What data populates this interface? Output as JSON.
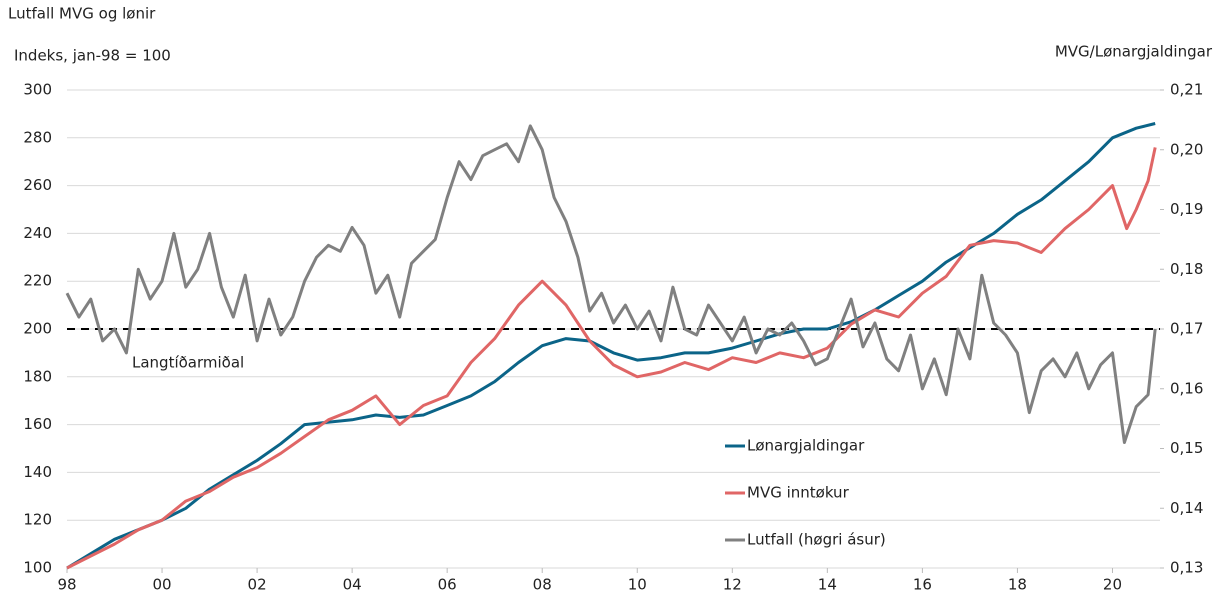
{
  "chart_data": {
    "type": "line",
    "title": "Lutfall MVG og lønir",
    "y_label": "Indeks, jan-98 = 100",
    "y2_label": "MVG/Lønargjaldingar",
    "xlim": [
      1998,
      2021
    ],
    "xticks": [
      {
        "value": 1998,
        "label": "98"
      },
      {
        "value": 2000,
        "label": "00"
      },
      {
        "value": 2002,
        "label": "02"
      },
      {
        "value": 2004,
        "label": "04"
      },
      {
        "value": 2006,
        "label": "06"
      },
      {
        "value": 2008,
        "label": "08"
      },
      {
        "value": 2010,
        "label": "10"
      },
      {
        "value": 2012,
        "label": "12"
      },
      {
        "value": 2014,
        "label": "14"
      },
      {
        "value": 2016,
        "label": "16"
      },
      {
        "value": 2018,
        "label": "18"
      },
      {
        "value": 2020,
        "label": "20"
      }
    ],
    "ylim": [
      100,
      300
    ],
    "yticks": [
      100,
      120,
      140,
      160,
      180,
      200,
      220,
      240,
      260,
      280,
      300
    ],
    "y2lim": [
      0.13,
      0.21
    ],
    "y2ticks": [
      {
        "value": 0.13,
        "label": "0,13"
      },
      {
        "value": 0.14,
        "label": "0,14"
      },
      {
        "value": 0.15,
        "label": "0,15"
      },
      {
        "value": 0.16,
        "label": "0,16"
      },
      {
        "value": 0.17,
        "label": "0,17"
      },
      {
        "value": 0.18,
        "label": "0,18"
      },
      {
        "value": 0.19,
        "label": "0,19"
      },
      {
        "value": 0.2,
        "label": "0,20"
      },
      {
        "value": 0.21,
        "label": "0,21"
      }
    ],
    "grid": true,
    "reference_line": {
      "value": 0.17,
      "axis": "y2",
      "label": "Langtíðarmiðal"
    },
    "series": [
      {
        "name": "Lønargjaldingar",
        "color": "#0b6488",
        "x": [
          1998,
          1999,
          2000,
          2000.5,
          2001,
          2002,
          2002.5,
          2003,
          2004,
          2004.5,
          2005,
          2005.5,
          2006,
          2006.5,
          2007,
          2007.5,
          2008,
          2008.5,
          2009,
          2009.5,
          2010,
          2010.5,
          2011,
          2011.5,
          2012,
          2012.5,
          2013,
          2013.5,
          2014,
          2014.5,
          2015,
          2015.5,
          2016,
          2016.5,
          2017,
          2017.5,
          2018,
          2018.5,
          2019,
          2019.5,
          2020,
          2020.5,
          2020.9
        ],
        "values": [
          100,
          112,
          120,
          125,
          133,
          145,
          152,
          160,
          162,
          164,
          163,
          164,
          168,
          172,
          178,
          186,
          193,
          196,
          195,
          190,
          187,
          188,
          190,
          190,
          192,
          195,
          198,
          200,
          200,
          203,
          208,
          214,
          220,
          228,
          234,
          240,
          248,
          254,
          262,
          270,
          280,
          284,
          286
        ]
      },
      {
        "name": "MVG inntøkur",
        "color": "#e06666",
        "x": [
          1998,
          1998.5,
          1999,
          1999.5,
          2000,
          2000.5,
          2001,
          2001.5,
          2002,
          2002.5,
          2003,
          2003.5,
          2004,
          2004.5,
          2005,
          2005.5,
          2006,
          2006.5,
          2007,
          2007.5,
          2008,
          2008.5,
          2009,
          2009.5,
          2010,
          2010.5,
          2011,
          2011.5,
          2012,
          2012.5,
          2013,
          2013.5,
          2014,
          2014.5,
          2015,
          2015.5,
          2016,
          2016.5,
          2017,
          2017.5,
          2018,
          2018.5,
          2019,
          2019.5,
          2020,
          2020.3,
          2020.5,
          2020.75,
          2020.9
        ],
        "values": [
          100,
          105,
          110,
          116,
          120,
          128,
          132,
          138,
          142,
          148,
          155,
          162,
          166,
          172,
          160,
          168,
          172,
          186,
          196,
          210,
          220,
          210,
          195,
          185,
          180,
          182,
          186,
          183,
          188,
          186,
          190,
          188,
          192,
          202,
          208,
          205,
          215,
          222,
          235,
          237,
          236,
          232,
          242,
          250,
          260,
          242,
          250,
          262,
          276
        ]
      },
      {
        "name": "Lutfall (høgri ásur)",
        "color": "#808080",
        "axis": "y2",
        "x": [
          1998,
          1998.25,
          1998.5,
          1998.75,
          1999,
          1999.25,
          1999.5,
          1999.75,
          2000,
          2000.25,
          2000.5,
          2000.75,
          2001,
          2001.25,
          2001.5,
          2001.75,
          2002,
          2002.25,
          2002.5,
          2002.75,
          2003,
          2003.25,
          2003.5,
          2003.75,
          2004,
          2004.25,
          2004.5,
          2004.75,
          2005,
          2005.25,
          2005.5,
          2005.75,
          2006,
          2006.25,
          2006.5,
          2006.75,
          2007,
          2007.25,
          2007.5,
          2007.75,
          2008,
          2008.25,
          2008.5,
          2008.75,
          2009,
          2009.25,
          2009.5,
          2009.75,
          2010,
          2010.25,
          2010.5,
          2010.75,
          2011,
          2011.25,
          2011.5,
          2011.75,
          2012,
          2012.25,
          2012.5,
          2012.75,
          2013,
          2013.25,
          2013.5,
          2013.75,
          2014,
          2014.25,
          2014.5,
          2014.75,
          2015,
          2015.25,
          2015.5,
          2015.75,
          2016,
          2016.25,
          2016.5,
          2016.75,
          2017,
          2017.25,
          2017.5,
          2017.75,
          2018,
          2018.25,
          2018.5,
          2018.75,
          2019,
          2019.25,
          2019.5,
          2019.75,
          2020,
          2020.25,
          2020.5,
          2020.75,
          2020.9
        ],
        "values": [
          0.176,
          0.172,
          0.175,
          0.168,
          0.17,
          0.166,
          0.18,
          0.175,
          0.178,
          0.186,
          0.177,
          0.18,
          0.186,
          0.177,
          0.172,
          0.179,
          0.168,
          0.175,
          0.169,
          0.172,
          0.178,
          0.182,
          0.184,
          0.183,
          0.187,
          0.184,
          0.176,
          0.179,
          0.172,
          0.181,
          0.183,
          0.185,
          0.192,
          0.198,
          0.195,
          0.199,
          0.2,
          0.201,
          0.198,
          0.204,
          0.2,
          0.192,
          0.188,
          0.182,
          0.173,
          0.176,
          0.171,
          0.174,
          0.17,
          0.173,
          0.168,
          0.177,
          0.17,
          0.169,
          0.174,
          0.171,
          0.168,
          0.172,
          0.166,
          0.17,
          0.169,
          0.171,
          0.168,
          0.164,
          0.165,
          0.17,
          0.175,
          0.167,
          0.171,
          0.165,
          0.163,
          0.169,
          0.16,
          0.165,
          0.159,
          0.17,
          0.165,
          0.179,
          0.171,
          0.169,
          0.166,
          0.156,
          0.163,
          0.165,
          0.162,
          0.166,
          0.16,
          0.164,
          0.166,
          0.151,
          0.157,
          0.159,
          0.17
        ]
      }
    ]
  }
}
